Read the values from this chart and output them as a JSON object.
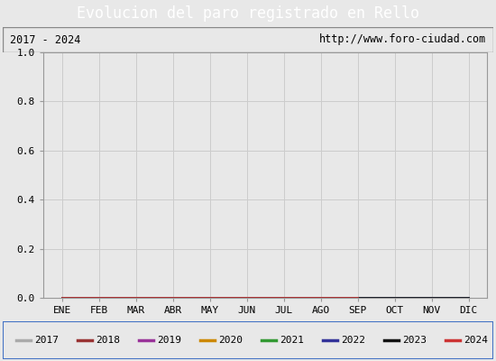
{
  "title": "Evolucion del paro registrado en Rello",
  "title_color": "#ffffff",
  "title_bg_color": "#4472c4",
  "subtitle_left": "2017 - 2024",
  "subtitle_right": "http://www.foro-ciudad.com",
  "months": [
    "ENE",
    "FEB",
    "MAR",
    "ABR",
    "MAY",
    "JUN",
    "JUL",
    "AGO",
    "SEP",
    "OCT",
    "NOV",
    "DIC"
  ],
  "ylim": [
    0.0,
    1.0
  ],
  "yticks": [
    0.0,
    0.2,
    0.4,
    0.6,
    0.8,
    1.0
  ],
  "years": [
    2017,
    2018,
    2019,
    2020,
    2021,
    2022,
    2023,
    2024
  ],
  "year_colors": [
    "#aaaaaa",
    "#993333",
    "#993399",
    "#cc8800",
    "#339933",
    "#333399",
    "#111111",
    "#cc3333"
  ],
  "year_data": {
    "2017": [
      0,
      0,
      0,
      0,
      0,
      0,
      0,
      0,
      0,
      0,
      0,
      0
    ],
    "2018": [
      0,
      0,
      0,
      0,
      0,
      0,
      0,
      0,
      0,
      0,
      0,
      0
    ],
    "2019": [
      0,
      0,
      0,
      0,
      0,
      0,
      0,
      0,
      0,
      0,
      0,
      0
    ],
    "2020": [
      0,
      0,
      0,
      0,
      0,
      0,
      0,
      0,
      0,
      0,
      0,
      0
    ],
    "2021": [
      0,
      0,
      0,
      0,
      0,
      0,
      0,
      0,
      0,
      0,
      0,
      0
    ],
    "2022": [
      0,
      0,
      0,
      0,
      0,
      0,
      0,
      0,
      0,
      0,
      0,
      0
    ],
    "2023": [
      0,
      0,
      0,
      0,
      0,
      0,
      0,
      0,
      0,
      0,
      0,
      0
    ],
    "2024": [
      0,
      0,
      0,
      0,
      0,
      0,
      0,
      0,
      0,
      null,
      null,
      null
    ]
  },
  "fig_bg_color": "#e8e8e8",
  "plot_bg_color": "#e8e8e8",
  "grid_color": "#cccccc",
  "spine_color": "#999999",
  "legend_bg": "#e8e8e8",
  "legend_border_color": "#4472c4",
  "font_family": "DejaVu Sans Mono",
  "title_fontsize": 12,
  "subtitle_fontsize": 8.5,
  "tick_fontsize": 8,
  "legend_fontsize": 8
}
